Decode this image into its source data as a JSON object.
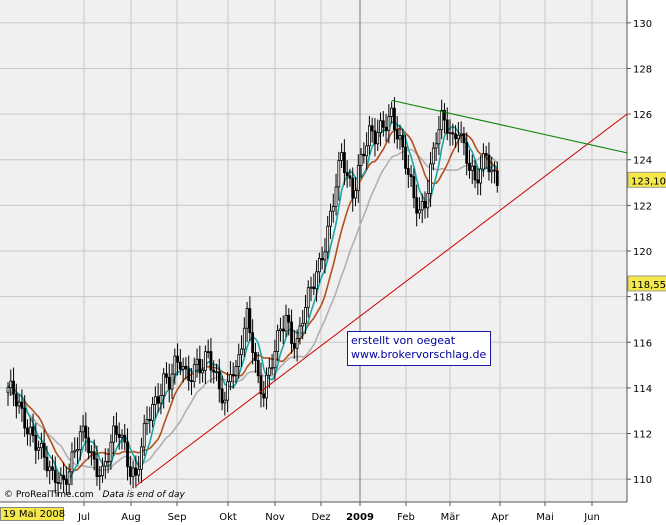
{
  "chart_data": {
    "type": "candlestick",
    "y_axis": {
      "side": "right",
      "range": [
        109,
        131
      ],
      "ticks": [
        110,
        112,
        114,
        116,
        118,
        120,
        122,
        124,
        126,
        128,
        130
      ]
    },
    "x_axis": {
      "tick_labels": [
        "Jul",
        "Aug",
        "Sep",
        "Okt",
        "Nov",
        "Dez",
        "2009",
        "Feb",
        "Mär",
        "Apr",
        "Mai",
        "Jun"
      ],
      "current_date_label": "19 Mai 2008"
    },
    "price_labels": {
      "last": "123,10",
      "marker": "118,555"
    },
    "price_path": [
      [
        0,
        113.8
      ],
      [
        2,
        113.6
      ],
      [
        4,
        113.2
      ],
      [
        6,
        112.7
      ],
      [
        8,
        112.2
      ],
      [
        10,
        111.6
      ],
      [
        12,
        111.0
      ],
      [
        14,
        110.5
      ],
      [
        16,
        110.1
      ],
      [
        18,
        110.3
      ],
      [
        20,
        110.0
      ],
      [
        22,
        110.4
      ],
      [
        24,
        111.0
      ],
      [
        26,
        111.8
      ],
      [
        28,
        112.0
      ],
      [
        30,
        111.2
      ],
      [
        32,
        110.6
      ],
      [
        34,
        110.2
      ],
      [
        36,
        110.9
      ],
      [
        38,
        111.8
      ],
      [
        40,
        112.2
      ],
      [
        42,
        111.6
      ],
      [
        44,
        110.5
      ],
      [
        46,
        110.0
      ],
      [
        48,
        111.2
      ],
      [
        50,
        112.5
      ],
      [
        52,
        113.2
      ],
      [
        54,
        113.8
      ],
      [
        56,
        114.5
      ],
      [
        58,
        114.2
      ],
      [
        60,
        114.8
      ],
      [
        62,
        115.0
      ],
      [
        64,
        114.6
      ],
      [
        66,
        114.8
      ],
      [
        68,
        115.2
      ],
      [
        70,
        114.8
      ],
      [
        72,
        115.3
      ],
      [
        74,
        114.5
      ],
      [
        76,
        114.2
      ],
      [
        78,
        113.5
      ],
      [
        80,
        115.0
      ],
      [
        82,
        114.5
      ],
      [
        84,
        115.8
      ],
      [
        86,
        117.0
      ],
      [
        88,
        116.0
      ],
      [
        90,
        114.5
      ],
      [
        92,
        113.9
      ],
      [
        94,
        114.6
      ],
      [
        96,
        115.4
      ],
      [
        98,
        116.5
      ],
      [
        100,
        117.2
      ],
      [
        102,
        116.4
      ],
      [
        104,
        116.0
      ],
      [
        106,
        117.0
      ],
      [
        108,
        117.8
      ],
      [
        110,
        118.6
      ],
      [
        112,
        119.5
      ],
      [
        114,
        120.5
      ],
      [
        116,
        121.6
      ],
      [
        118,
        122.8
      ],
      [
        120,
        124.0
      ],
      [
        122,
        123.2
      ],
      [
        124,
        122.6
      ],
      [
        126,
        123.8
      ],
      [
        128,
        124.5
      ],
      [
        130,
        125.0
      ],
      [
        132,
        124.8
      ],
      [
        134,
        125.3
      ],
      [
        136,
        125.8
      ],
      [
        138,
        126.2
      ],
      [
        140,
        125.2
      ],
      [
        142,
        124.2
      ],
      [
        144,
        123.2
      ],
      [
        146,
        122.3
      ],
      [
        148,
        121.9
      ],
      [
        150,
        122.3
      ],
      [
        152,
        123.6
      ],
      [
        154,
        124.8
      ],
      [
        156,
        125.6
      ],
      [
        158,
        125.5
      ],
      [
        160,
        125.0
      ],
      [
        162,
        125.6
      ],
      [
        164,
        124.5
      ],
      [
        166,
        123.5
      ],
      [
        168,
        122.8
      ],
      [
        170,
        123.6
      ],
      [
        172,
        124.5
      ],
      [
        174,
        123.6
      ],
      [
        176,
        123.1
      ]
    ],
    "trend_lines": [
      {
        "color": "#cc0000",
        "from": [
          46,
          109.7
        ],
        "to": [
          250,
          126.0
        ]
      },
      {
        "color": "#008000",
        "from": [
          138,
          126.6
        ],
        "to": [
          250,
          124.3
        ]
      }
    ],
    "colors": {
      "background": "#f0f0f0",
      "candles": "#000000",
      "ma_fast": "#1aa7a7",
      "ma_mid": "#b5501a",
      "ma_slow": "#b0b0b0",
      "support_line": "#cc0000",
      "resistance_line": "#008000",
      "last_price_label": "#f4e84a"
    }
  },
  "annotation": {
    "line1": "erstellt von oegeat",
    "line2": "www.brokervorschlag.de"
  },
  "credit": {
    "source": "© ProRealTime.com",
    "note": "Data is end of day"
  }
}
